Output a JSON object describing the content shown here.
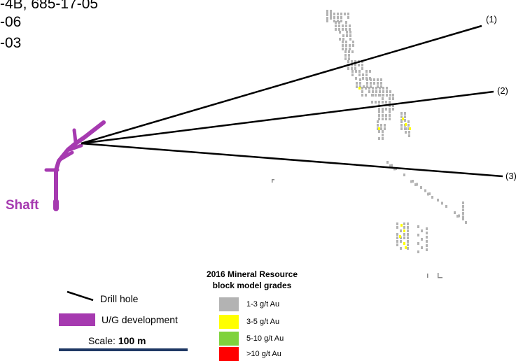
{
  "header_lines": [
    "-4B, 685-17-05",
    "-06",
    "-03"
  ],
  "drill_holes": [
    {
      "label": "(1)"
    },
    {
      "label": "(2)"
    },
    {
      "label": "(3)"
    }
  ],
  "shaft_label": "Shaft",
  "legend": {
    "drill_hole_label": "Drill hole",
    "ug_development_label": "U/G development",
    "scale_prefix": "Scale: ",
    "scale_value": "100 m"
  },
  "grade_legend": {
    "title_line1": "2016 Mineral Resource",
    "title_line2": "block model grades",
    "grades": [
      {
        "label": "1-3  g/t Au",
        "color": "#b3b3b3"
      },
      {
        "label": "3-5  g/t Au",
        "color": "#ffff00"
      },
      {
        "label": "5-10  g/t Au",
        "color": "#7fd23c"
      },
      {
        "label": ">10 g/t Au",
        "color": "#ff0000"
      }
    ]
  },
  "colors": {
    "ug_development": "#a63ab0",
    "drill_line": "#000000",
    "scale_bar": "#1f3864",
    "low_grade_block": "#b3b3b3",
    "mid_grade_block": "#ffff00"
  }
}
